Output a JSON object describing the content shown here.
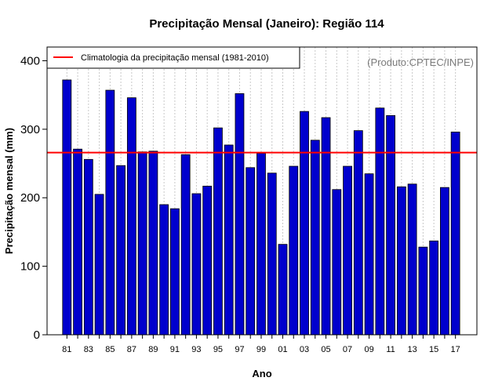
{
  "chart_data": {
    "type": "bar",
    "title": "Precipitação Mensal (Janeiro): Região 114",
    "xlabel": "Ano",
    "ylabel": "Precipitação mensal (mm)",
    "ylim": [
      0,
      420
    ],
    "yticks": [
      0,
      100,
      200,
      300,
      400
    ],
    "grid": "vertical dotted",
    "source_note": "(Produto:CPTEC/INPE)",
    "categories": [
      "81",
      "82",
      "83",
      "84",
      "85",
      "86",
      "87",
      "88",
      "89",
      "90",
      "91",
      "92",
      "93",
      "94",
      "95",
      "96",
      "97",
      "98",
      "99",
      "00",
      "01",
      "02",
      "03",
      "04",
      "05",
      "06",
      "07",
      "08",
      "09",
      "10",
      "11",
      "12",
      "13",
      "14",
      "15",
      "16",
      "17"
    ],
    "tick_labels": [
      "81",
      "83",
      "85",
      "87",
      "89",
      "91",
      "93",
      "95",
      "97",
      "99",
      "01",
      "03",
      "05",
      "07",
      "09",
      "11",
      "13",
      "15",
      "17"
    ],
    "series": [
      {
        "name": "Precipitação mensal",
        "color": "#0000cd",
        "values": [
          372,
          271,
          256,
          205,
          357,
          247,
          346,
          267,
          268,
          190,
          184,
          263,
          206,
          217,
          302,
          277,
          352,
          244,
          265,
          236,
          132,
          246,
          326,
          284,
          317,
          212,
          246,
          298,
          235,
          331,
          320,
          216,
          220,
          128,
          137,
          215,
          296
        ]
      }
    ],
    "reference_line": {
      "label": "Climatologia da precipitação mensal (1981-2010)",
      "value": 266,
      "color": "#ff0000"
    },
    "legend_position": "top-left"
  }
}
